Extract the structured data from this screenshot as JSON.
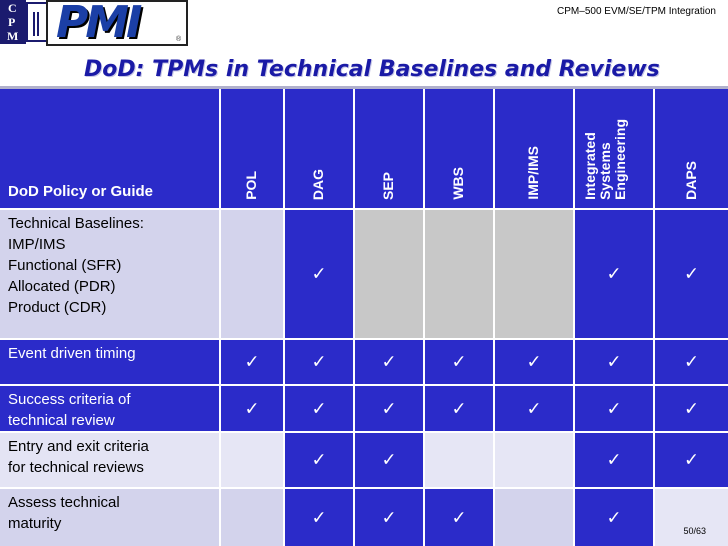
{
  "header": {
    "logo_letters": [
      "C",
      "P",
      "M"
    ],
    "logo_text": "PMI",
    "logo_mark": "®",
    "title": "CPM–500 EVM/SE/TPM Integration"
  },
  "slide": {
    "title": "DoD: TPMs in Technical Baselines and Reviews",
    "page": "50/63"
  },
  "table": {
    "corner": "DoD Policy or Guide",
    "columns": [
      "POL",
      "DAG",
      "SEP",
      "WBS",
      "IMP/IMS",
      "Integrated Systems Engineering",
      "DAPS"
    ],
    "check_glyph": "✓",
    "rows": [
      {
        "label": "Technical Baselines: IMP/IMS Functional (SFR) Allocated (PDR) Product (CDR)",
        "cells": [
          "",
          "✓",
          "",
          "",
          "",
          "✓",
          "✓"
        ]
      },
      {
        "label": "Event driven timing",
        "cells": [
          "✓",
          "✓",
          "✓",
          "✓",
          "✓",
          "✓",
          "✓"
        ]
      },
      {
        "label": "Success criteria of technical review",
        "cells": [
          "✓",
          "✓",
          "✓",
          "✓",
          "✓",
          "✓",
          "✓"
        ]
      },
      {
        "label": "Entry and exit criteria for technical reviews",
        "cells": [
          "",
          "✓",
          "✓",
          "",
          "",
          "✓",
          "✓"
        ]
      },
      {
        "label": "Assess technical maturity",
        "cells": [
          "",
          "✓",
          "✓",
          "✓",
          "",
          "✓",
          ""
        ]
      }
    ],
    "row1_lines": [
      "Technical Baselines:",
      "IMP/IMS",
      "Functional (SFR)",
      "Allocated (PDR)",
      "Product (CDR)"
    ],
    "row_lines": [
      [
        "Event driven timing"
      ],
      [
        "Success criteria of",
        "technical review"
      ],
      [
        "Entry and exit criteria",
        "for technical reviews"
      ],
      [
        "Assess technical",
        "maturity"
      ]
    ],
    "col6_lines": [
      "Integrated",
      "Systems",
      "Engineering"
    ]
  }
}
